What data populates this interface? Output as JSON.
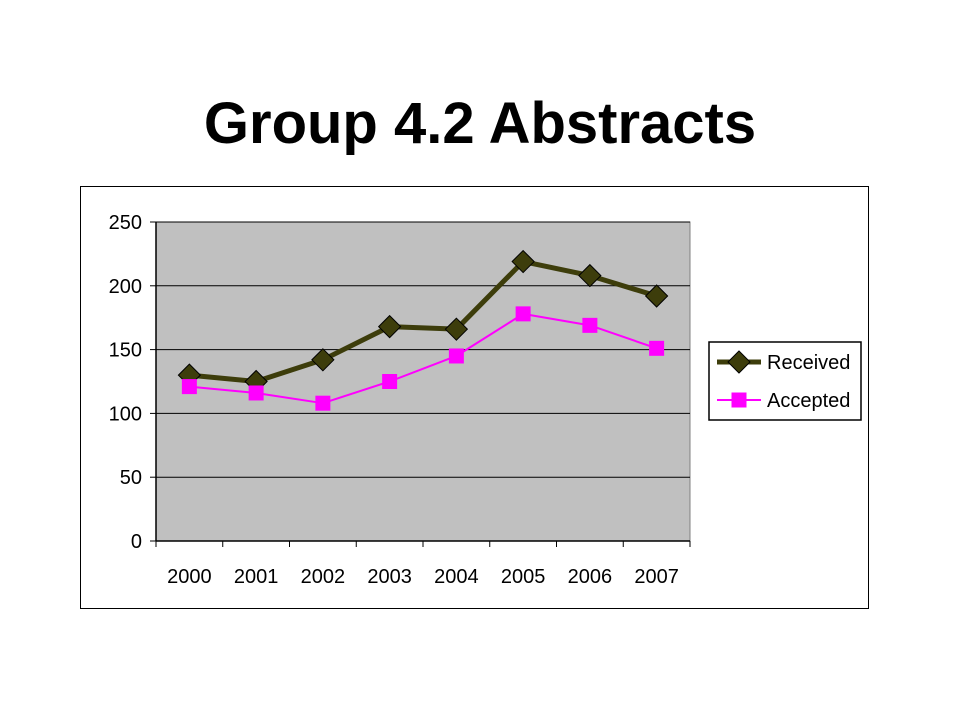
{
  "slide": {
    "title": "Group 4.2 Abstracts"
  },
  "chart_data": {
    "type": "line",
    "title": "",
    "xlabel": "",
    "ylabel": "",
    "categories": [
      "2000",
      "2001",
      "2002",
      "2003",
      "2004",
      "2005",
      "2006",
      "2007"
    ],
    "ylim": [
      0,
      250
    ],
    "yticks": [
      0,
      50,
      100,
      150,
      200,
      250
    ],
    "grid": true,
    "legend_position": "right",
    "plot_background": "#c0c0c0",
    "series": [
      {
        "name": "Received",
        "values": [
          130,
          125,
          142,
          168,
          166,
          219,
          208,
          192
        ],
        "color": "#3d3d0b",
        "marker": "diamond"
      },
      {
        "name": "Accepted",
        "values": [
          121,
          116,
          108,
          125,
          145,
          178,
          169,
          151
        ],
        "color": "#ff00ff",
        "marker": "square"
      }
    ]
  }
}
